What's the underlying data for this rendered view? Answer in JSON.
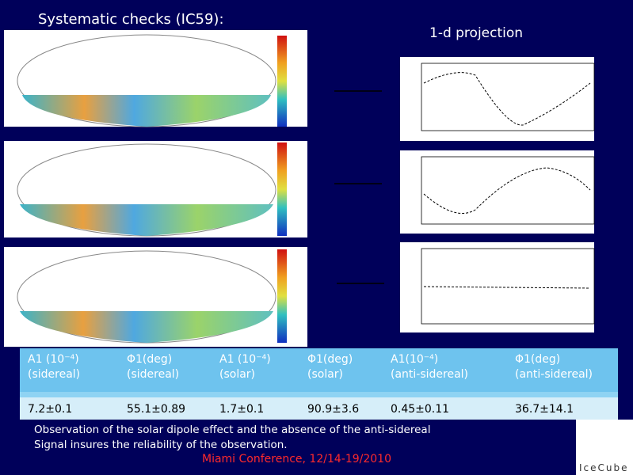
{
  "slide": {
    "title": "Systematic checks (IC59):",
    "projection_label": "1-d projection",
    "table": {
      "header": [
        [
          "A1 (10⁻⁴)",
          "(sidereal)"
        ],
        [
          "Φ1(deg)",
          "(sidereal)"
        ],
        [
          "A1 (10⁻⁴)",
          "(solar)"
        ],
        [
          "Φ1(deg)",
          "(solar)"
        ],
        [
          "A1(10⁻⁴)",
          "(anti-sidereal)"
        ],
        [
          "Φ1(deg)",
          "(anti-sidereal)"
        ]
      ],
      "values": [
        "7.2±0.1",
        "55.1±0.89",
        "1.7±0.1",
        "90.9±3.6",
        "0.45±0.11",
        "36.7±14.1"
      ]
    },
    "note": [
      "Observation of the solar dipole effect and the absence of the anti-sidereal",
      "Signal insures the reliability of the observation."
    ],
    "footer": "Miami Conference, 12/14-19/2010",
    "logo": "IceCube"
  }
}
